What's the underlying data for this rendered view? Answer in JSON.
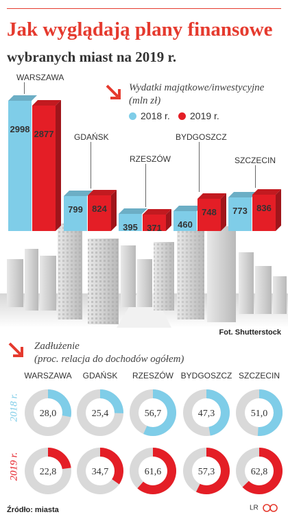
{
  "title": "Jak wyglądają plany finansowe",
  "subtitle": "wybranych miast na 2019 r.",
  "colors": {
    "accent": "#e53a2e",
    "series_2018": "#7fcde8",
    "series_2019": "#e41e26",
    "donut_empty": "#d9d9d9"
  },
  "investment": {
    "heading": "Wydatki majątkowe/inwestycyjne",
    "unit_note": "(mln zł)"
  },
  "photo_credit": "Fot. Shutterstock",
  "debt": {
    "heading": "Zadłużenie",
    "note": "(proc. relacja do dochodów ogółem)"
  },
  "source": "Źródło: miasta",
  "logo": {
    "initials": "LR",
    "icon": "cp-logo-icon"
  },
  "chart_data": [
    {
      "type": "bar",
      "categories": [
        "WARSZAWA",
        "GDAŃSK",
        "RZESZÓW",
        "BYDGOSZCZ",
        "SZCZECIN"
      ],
      "series": [
        {
          "name": "2018 r.",
          "values": [
            2998,
            799,
            395,
            460,
            773
          ],
          "color": "#7fcde8"
        },
        {
          "name": "2019 r.",
          "values": [
            2877,
            824,
            371,
            748,
            836
          ],
          "color": "#e41e26"
        }
      ]
    },
    {
      "type": "pie",
      "categories": [
        "WARSZAWA",
        "GDAŃSK",
        "RZESZÓW",
        "BYDGOSZCZ",
        "SZCZECIN"
      ],
      "series": [
        {
          "name": "2018 r.",
          "values": [
            28.0,
            25.4,
            56.7,
            47.3,
            51.0
          ],
          "labels": [
            "28,0",
            "25,4",
            "56,7",
            "47,3",
            "51,0"
          ],
          "color": "#7fcde8"
        },
        {
          "name": "2019 r.",
          "values": [
            22.8,
            34.7,
            61.6,
            57.3,
            62.8
          ],
          "labels": [
            "22,8",
            "34,7",
            "61,6",
            "57,3",
            "62,8"
          ],
          "color": "#e41e26"
        }
      ]
    }
  ]
}
